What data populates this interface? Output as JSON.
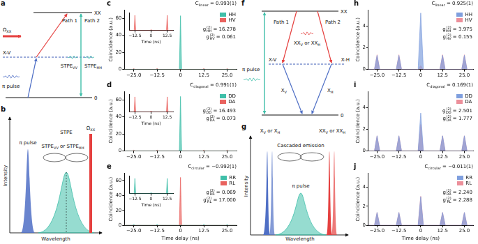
{
  "chart_data": [
    {
      "panel": "c",
      "type": "line",
      "grid": false,
      "legend": "upper right",
      "title": [
        {
          "text": "C",
          "sub": "linear"
        },
        {
          "text": " = 0.993(1)"
        }
      ],
      "annotations": [
        [
          {
            "text": "g",
            "sup": "(2)",
            "sub": "HH"
          },
          {
            "text": " = 16.278"
          }
        ],
        [
          {
            "text": "g",
            "sup": "(2)",
            "sub": "HV"
          },
          {
            "text": " = 0.061"
          }
        ]
      ],
      "y_label": "Coincidence (a.u.)",
      "x": [
        -30,
        -25.6,
        -25,
        -24.4,
        -13.1,
        -12.5,
        -11.9,
        -0.6,
        0,
        0.6,
        11.9,
        12.5,
        13.1,
        24.4,
        25,
        25.6,
        30
      ],
      "xlim": [
        -30,
        30
      ],
      "xticks": [
        {
          "value": -25,
          "label": "−25.0"
        },
        {
          "value": -12.5,
          "label": "−12.5"
        },
        0,
        12.5,
        {
          "value": 25,
          "label": "25.0"
        }
      ],
      "ylim": [
        0,
        70
      ],
      "yticks": [
        0,
        20,
        40,
        60
      ],
      "series": [
        {
          "name": "HH",
          "color": "#3fbfa9",
          "values": [
            0,
            0,
            0.3,
            0,
            0,
            0.3,
            0,
            0,
            63,
            0,
            0,
            0.3,
            0,
            0,
            0.3,
            0,
            0
          ]
        },
        {
          "name": "HV",
          "color": "#e9625e",
          "values": [
            0,
            0,
            1,
            0,
            0,
            1.1,
            0,
            0,
            0.1,
            0,
            0,
            1.1,
            0,
            0,
            1,
            0,
            0
          ]
        }
      ],
      "inset": {
        "type": "line",
        "grid": false,
        "tick_labels": "x",
        "x_label": "Time (ns)",
        "x": [
          -17,
          -13.1,
          -12.5,
          -11.9,
          -0.6,
          0,
          0.6,
          11.9,
          12.5,
          13.1,
          17
        ],
        "xlim": [
          -17,
          17
        ],
        "xticks": [
          {
            "value": -12.5,
            "label": "−12.5"
          },
          0,
          12.5
        ],
        "ylim": [
          0,
          1.3
        ],
        "series": [
          {
            "color": "#e9625e",
            "values": [
              0,
              0,
              1.1,
              0,
              0,
              0.07,
              0,
              0,
              1.1,
              0,
              0
            ]
          }
        ]
      }
    },
    {
      "panel": "d",
      "type": "line",
      "grid": false,
      "legend": "upper right",
      "title": [
        {
          "text": "C",
          "sub": "diagonal"
        },
        {
          "text": " = 0.991(1)"
        }
      ],
      "annotations": [
        [
          {
            "text": "g",
            "sup": "(2)",
            "sub": "DD"
          },
          {
            "text": " = 16.493"
          }
        ],
        [
          {
            "text": "g",
            "sup": "(2)",
            "sub": "DA"
          },
          {
            "text": " = 0.073"
          }
        ]
      ],
      "y_label": "Coincidence (a.u.)",
      "x": [
        -30,
        -25.6,
        -25,
        -24.4,
        -13.1,
        -12.5,
        -11.9,
        -0.6,
        0,
        0.6,
        11.9,
        12.5,
        13.1,
        24.4,
        25,
        25.6,
        30
      ],
      "xlim": [
        -30,
        30
      ],
      "xticks": [
        {
          "value": -25,
          "label": "−25.0"
        },
        {
          "value": -12.5,
          "label": "−12.5"
        },
        0,
        12.5,
        {
          "value": 25,
          "label": "25.0"
        }
      ],
      "ylim": [
        0,
        70
      ],
      "yticks": [
        0,
        20,
        40,
        60
      ],
      "series": [
        {
          "name": "DD",
          "color": "#3fbfa9",
          "values": [
            0,
            0,
            0.3,
            0,
            0,
            0.3,
            0,
            0,
            64,
            0,
            0,
            0.3,
            0,
            0,
            0.3,
            0,
            0
          ]
        },
        {
          "name": "DA",
          "color": "#e9625e",
          "values": [
            0,
            0,
            1,
            0,
            0,
            1.1,
            0,
            0,
            0.1,
            0,
            0,
            1.1,
            0,
            0,
            1,
            0,
            0
          ]
        }
      ],
      "inset": {
        "type": "line",
        "grid": false,
        "tick_labels": "x",
        "x_label": "Time (ns)",
        "x": [
          -17,
          -13.1,
          -12.5,
          -11.9,
          -0.6,
          0,
          0.6,
          11.9,
          12.5,
          13.1,
          17
        ],
        "xlim": [
          -17,
          17
        ],
        "xticks": [
          {
            "value": -12.5,
            "label": "−12.5"
          },
          0,
          12.5
        ],
        "ylim": [
          0,
          1.3
        ],
        "series": [
          {
            "color": "#e9625e",
            "values": [
              0,
              0,
              1.1,
              0,
              0,
              0.08,
              0,
              0,
              1.1,
              0,
              0
            ]
          }
        ]
      }
    },
    {
      "panel": "e",
      "type": "line",
      "grid": false,
      "legend": "upper right",
      "title": [
        {
          "text": "C",
          "sub": "circular"
        },
        {
          "text": " = −0.992(1)"
        }
      ],
      "annotations": [
        [
          {
            "text": "g",
            "sup": "(2)",
            "sub": "RR"
          },
          {
            "text": " = 0.069"
          }
        ],
        [
          {
            "text": "g",
            "sup": "(2)",
            "sub": "RL"
          },
          {
            "text": " = 17.000"
          }
        ]
      ],
      "y_label": "Coincidence (a.u.)",
      "x_label": "Time delay (ns)",
      "x": [
        -30,
        -25.6,
        -25,
        -24.4,
        -13.1,
        -12.5,
        -11.9,
        -0.6,
        0,
        0.6,
        11.9,
        12.5,
        13.1,
        24.4,
        25,
        25.6,
        30
      ],
      "xlim": [
        -30,
        30
      ],
      "xticks": [
        {
          "value": -25,
          "label": "−25.0"
        },
        {
          "value": -12.5,
          "label": "−12.5"
        },
        0,
        12.5,
        {
          "value": 25,
          "label": "25.0"
        }
      ],
      "ylim": [
        0,
        70
      ],
      "yticks": [
        0,
        20,
        40,
        60
      ],
      "series": [
        {
          "name": "RR",
          "color": "#3fbfa9",
          "values": [
            0,
            0,
            1,
            0,
            0,
            1.1,
            0,
            0,
            0.1,
            0,
            0,
            1.1,
            0,
            0,
            1,
            0,
            0
          ]
        },
        {
          "name": "RL",
          "color": "#e9625e",
          "values": [
            0,
            0,
            0.3,
            0,
            0,
            0.3,
            0,
            0,
            64,
            0,
            0,
            0.3,
            0,
            0,
            0.3,
            0,
            0
          ]
        }
      ],
      "inset": {
        "type": "line",
        "grid": false,
        "tick_labels": "x",
        "x_label": "Time (ns)",
        "x": [
          -17,
          -13.1,
          -12.5,
          -11.9,
          -0.6,
          0,
          0.6,
          11.9,
          12.5,
          13.1,
          17
        ],
        "xlim": [
          -17,
          17
        ],
        "xticks": [
          {
            "value": -12.5,
            "label": "−12.5"
          },
          0,
          12.5
        ],
        "ylim": [
          0,
          1.3
        ],
        "series": [
          {
            "color": "#3fbfa9",
            "values": [
              0,
              0,
              1.1,
              0,
              0,
              0.08,
              0,
              0,
              1.1,
              0,
              0
            ]
          }
        ]
      }
    },
    {
      "panel": "h",
      "type": "line",
      "grid": false,
      "legend": "upper right",
      "title": [
        {
          "text": "C",
          "sub": "linear"
        },
        {
          "text": " = 0.925(1)"
        }
      ],
      "annotations": [
        [
          {
            "text": "g",
            "sup": "(2)",
            "sub": "HH"
          },
          {
            "text": " = 3.975"
          }
        ],
        [
          {
            "text": "g",
            "sup": "(2)",
            "sub": "HV"
          },
          {
            "text": " = 0.155"
          }
        ]
      ],
      "y_label": "Coincidence (a.u.)",
      "x": [
        -30,
        -26.5,
        -25,
        -23.5,
        -14,
        -12.5,
        -11,
        -1.5,
        0,
        1.5,
        11,
        12.5,
        14,
        23.5,
        25,
        26.5,
        30
      ],
      "xlim": [
        -30,
        30
      ],
      "xticks": [
        {
          "value": -25,
          "label": "−25.0"
        },
        {
          "value": -12.5,
          "label": "−12.5"
        },
        0,
        12.5,
        {
          "value": 25,
          "label": "25.0"
        }
      ],
      "ylim": [
        0,
        5.5
      ],
      "yticks": [
        0,
        2,
        4
      ],
      "series": [
        {
          "name": "HH",
          "color": "#7f9fde",
          "values": [
            0,
            0,
            1.3,
            0,
            0,
            1.3,
            0,
            0,
            5.2,
            0,
            0,
            1.3,
            0,
            0,
            1.3,
            0,
            0
          ]
        },
        {
          "name": "HV",
          "color": "#ec8f9a",
          "values": [
            0,
            0,
            1.35,
            0,
            0,
            1.35,
            0,
            0,
            0.35,
            0,
            0,
            1.35,
            0,
            0,
            1.35,
            0,
            0
          ]
        }
      ]
    },
    {
      "panel": "i",
      "type": "line",
      "grid": false,
      "legend": "upper right",
      "title": [
        {
          "text": "C",
          "sub": "diagonal"
        },
        {
          "text": " = 0.169(1)"
        }
      ],
      "annotations": [
        [
          {
            "text": "g",
            "sup": "(2)",
            "sub": "DD"
          },
          {
            "text": " = 2.501"
          }
        ],
        [
          {
            "text": "g",
            "sup": "(2)",
            "sub": "DA"
          },
          {
            "text": " = 1.777"
          }
        ]
      ],
      "y_label": "Coincidence (a.u.)",
      "x": [
        -30,
        -26.5,
        -25,
        -23.5,
        -14,
        -12.5,
        -11,
        -1.5,
        0,
        1.5,
        11,
        12.5,
        14,
        23.5,
        25,
        26.5,
        30
      ],
      "xlim": [
        -30,
        30
      ],
      "xticks": [
        {
          "value": -25,
          "label": "−25.0"
        },
        {
          "value": -12.5,
          "label": "−12.5"
        },
        0,
        12.5,
        {
          "value": 25,
          "label": "25.0"
        }
      ],
      "ylim": [
        0,
        5.5
      ],
      "yticks": [
        0,
        2,
        4
      ],
      "series": [
        {
          "name": "DD",
          "color": "#7f9fde",
          "values": [
            0,
            0,
            1.4,
            0,
            0,
            1.4,
            0,
            0,
            3.5,
            0,
            0,
            1.4,
            0,
            0,
            1.4,
            0,
            0
          ]
        },
        {
          "name": "DA",
          "color": "#ec8f9a",
          "values": [
            0,
            0,
            1.4,
            0,
            0,
            1.4,
            0,
            0,
            2.45,
            0,
            0,
            1.4,
            0,
            0,
            1.4,
            0,
            0
          ]
        }
      ]
    },
    {
      "panel": "j",
      "type": "line",
      "grid": false,
      "legend": "upper right",
      "title": [
        {
          "text": "C",
          "sub": "circular"
        },
        {
          "text": " = −0.011(1)"
        }
      ],
      "annotations": [
        [
          {
            "text": "g",
            "sup": "(2)",
            "sub": "RR"
          },
          {
            "text": " = 2.240"
          }
        ],
        [
          {
            "text": "g",
            "sup": "(2)",
            "sub": "RL"
          },
          {
            "text": " = 2.288"
          }
        ]
      ],
      "y_label": "Coincidence (a.u.)",
      "x_label": "Time delay (ns)",
      "x": [
        -30,
        -26.5,
        -25,
        -23.5,
        -14,
        -12.5,
        -11,
        -1.5,
        0,
        1.5,
        11,
        12.5,
        14,
        23.5,
        25,
        26.5,
        30
      ],
      "xlim": [
        -30,
        30
      ],
      "xticks": [
        {
          "value": -25,
          "label": "−25.0"
        },
        {
          "value": -12.5,
          "label": "−12.5"
        },
        0,
        12.5,
        {
          "value": 25,
          "label": "25.0"
        }
      ],
      "ylim": [
        0,
        5.5
      ],
      "yticks": [
        0,
        2,
        4
      ],
      "series": [
        {
          "name": "RR",
          "color": "#7f9fde",
          "values": [
            0,
            0,
            1.35,
            0,
            0,
            1.35,
            0,
            0,
            3.0,
            0,
            0,
            1.35,
            0,
            0,
            1.35,
            0,
            0
          ]
        },
        {
          "name": "RL",
          "color": "#ec8f9a",
          "values": [
            0,
            0,
            1.35,
            0,
            0,
            1.35,
            0,
            0,
            3.05,
            0,
            0,
            1.35,
            0,
            0,
            1.35,
            0,
            0
          ]
        }
      ]
    }
  ],
  "diagrams": [
    {
      "panel": "a",
      "levels": [
        "XX",
        "X-V",
        "0"
      ],
      "pump": [
        {
          "text": "Ω",
          "sub": "XX"
        }
      ],
      "excitation": "π pulse",
      "paths": [
        "Path 1",
        "Path 2"
      ],
      "emission": [
        [
          {
            "text": "STPE",
            "sub": "VV"
          }
        ],
        [
          {
            "text": "STPE",
            "sub": "HH"
          }
        ]
      ]
    },
    {
      "panel": "b",
      "axes": [
        "Intensity",
        "Wavelength"
      ],
      "excitation": "π pulse",
      "pump": [
        {
          "text": "Ω",
          "sub": "XX"
        }
      ],
      "emission_title": "STPE",
      "emission": [
        {
          "text": "STPE",
          "sub": "VV"
        },
        {
          "text": " or "
        },
        {
          "text": "STPE",
          "sub": "HH"
        }
      ]
    },
    {
      "panel": "f",
      "levels": [
        "XX",
        "X-V",
        "X-H",
        "0"
      ],
      "excitation": "π pulse",
      "paths": [
        "Path 1",
        "Path 2"
      ],
      "upper_emission": [
        {
          "text": "XX",
          "sub": "V"
        },
        {
          "text": " or "
        },
        {
          "text": "XX",
          "sub": "H"
        }
      ],
      "lower_emission": [
        [
          {
            "text": "X",
            "sub": "V"
          }
        ],
        [
          {
            "text": "X",
            "sub": "H"
          }
        ]
      ]
    },
    {
      "panel": "g",
      "axes": [
        "Intensity",
        "Wavelength"
      ],
      "lower_emission": [
        {
          "text": "X",
          "sub": "V"
        },
        {
          "text": " or "
        },
        {
          "text": "X",
          "sub": "H"
        }
      ],
      "upper_emission": [
        {
          "text": "XX",
          "sub": "V"
        },
        {
          "text": " or "
        },
        {
          "text": "XX",
          "sub": "H"
        }
      ],
      "loop": "Cascaded emission",
      "excitation": "π pulse"
    }
  ]
}
